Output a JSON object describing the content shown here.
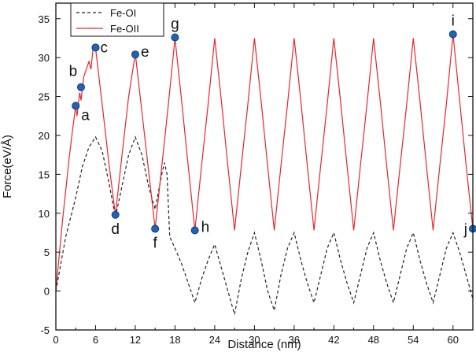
{
  "chart_data": {
    "type": "line",
    "xlabel": "Distance (nm)",
    "ylabel": "Force(eV/Å)",
    "xlim": [
      0,
      63
    ],
    "ylim": [
      -5,
      37
    ],
    "xticks": [
      0,
      3,
      6,
      9,
      12,
      15,
      18,
      21,
      24,
      27,
      30,
      33,
      36,
      39,
      42,
      45,
      48,
      51,
      54,
      57,
      60,
      63
    ],
    "xtick_labels": [
      "0",
      "",
      "6",
      "",
      "12",
      "",
      "18",
      "",
      "24",
      "",
      "30",
      "",
      "36",
      "",
      "42",
      "",
      "48",
      "",
      "54",
      "",
      "60",
      ""
    ],
    "yticks": [
      -5,
      0,
      5,
      10,
      15,
      20,
      25,
      30,
      35
    ],
    "ytick_labels": [
      "-5",
      "0",
      "5",
      "10",
      "15",
      "20",
      "25",
      "30",
      "35"
    ],
    "legend": {
      "position": "top-left",
      "entries": [
        "Fe-OI",
        "Fe-OII"
      ]
    },
    "series": [
      {
        "name": "Fe-OI",
        "style": "dashed",
        "color": "#222222",
        "x": [
          0,
          1.5,
          3,
          4,
          5,
          6,
          7,
          8,
          9,
          10,
          11,
          12,
          13,
          14,
          15,
          16,
          16.4,
          16.8,
          17.2,
          18,
          19,
          20,
          21,
          22,
          23,
          24,
          25,
          26,
          27,
          28,
          29,
          30,
          31,
          32,
          33,
          34,
          35,
          36,
          37,
          38,
          39,
          40,
          41,
          42,
          43,
          44,
          45,
          46,
          47,
          48,
          49,
          50,
          51,
          52,
          53,
          54,
          55,
          56,
          57,
          58,
          59,
          60,
          61,
          62,
          63
        ],
        "y": [
          0,
          7,
          12,
          16,
          18.5,
          19.8,
          18,
          14,
          9.5,
          13.5,
          17.5,
          19.8,
          17.5,
          13.5,
          10.5,
          15,
          16.5,
          15,
          7,
          5.5,
          3.5,
          1,
          -1.5,
          1.5,
          4,
          6,
          3,
          0,
          -3,
          1.5,
          5,
          7.5,
          4,
          0,
          -2.5,
          2,
          5.5,
          7.5,
          4,
          1,
          -1.5,
          2,
          5.5,
          7.5,
          4,
          1,
          -1.5,
          2,
          5.5,
          7.5,
          4,
          1,
          -1.5,
          2,
          5.5,
          7.5,
          4,
          1,
          -1.5,
          2,
          5.5,
          7.5,
          5,
          2,
          -1
        ]
      },
      {
        "name": "Fe-OII",
        "style": "solid",
        "color": "#e8262b",
        "x": [
          0,
          1,
          2,
          2.5,
          3,
          3.2,
          3.6,
          3.8,
          4.2,
          5,
          5.3,
          5.6,
          6,
          7,
          8,
          9,
          10,
          11,
          12,
          13,
          14,
          15,
          16,
          17,
          18,
          19,
          20,
          21,
          22,
          23,
          24,
          25,
          26,
          27,
          28,
          29,
          30,
          31,
          32,
          33,
          34,
          35,
          36,
          37,
          38,
          39,
          40,
          41,
          42,
          43,
          44,
          45,
          46,
          47,
          48,
          49,
          50,
          51,
          52,
          53,
          54,
          55,
          56,
          57,
          58,
          59,
          60,
          61,
          62,
          63
        ],
        "y": [
          0,
          9,
          17,
          20.5,
          23.8,
          22.5,
          25.5,
          24.5,
          27.5,
          29.5,
          28.5,
          31,
          31.2,
          24,
          16.5,
          9.8,
          17.5,
          25,
          30.5,
          23,
          15.5,
          8,
          16,
          24,
          32.5,
          24.5,
          16,
          7.8,
          16,
          24,
          32.5,
          24.5,
          16,
          7.8,
          16,
          24,
          32.5,
          24.5,
          16,
          7.8,
          16,
          24,
          32.5,
          24.5,
          16,
          7.8,
          16,
          24,
          32.5,
          24.5,
          16,
          7.8,
          16,
          24,
          32.5,
          24.5,
          16,
          7.8,
          16,
          24,
          32.5,
          24.5,
          16,
          7.8,
          16,
          24,
          33,
          24.5,
          16,
          8
        ]
      }
    ],
    "markers": {
      "color": "#1f63b5",
      "points": [
        {
          "label": "a",
          "x": 3,
          "y": 23.8,
          "anchor": "right"
        },
        {
          "label": "b",
          "x": 3.8,
          "y": 26.2,
          "anchor": "left-up"
        },
        {
          "label": "c",
          "x": 6,
          "y": 31.3,
          "anchor": "right"
        },
        {
          "label": "d",
          "x": 9,
          "y": 9.8,
          "anchor": "below"
        },
        {
          "label": "e",
          "x": 12,
          "y": 30.4,
          "anchor": "right"
        },
        {
          "label": "f",
          "x": 15,
          "y": 8,
          "anchor": "below"
        },
        {
          "label": "g",
          "x": 18,
          "y": 32.6,
          "anchor": "above"
        },
        {
          "label": "h",
          "x": 21,
          "y": 7.8,
          "anchor": "right"
        },
        {
          "label": "i",
          "x": 60,
          "y": 33,
          "anchor": "above"
        },
        {
          "label": "j",
          "x": 63,
          "y": 8,
          "anchor": "left"
        }
      ]
    }
  }
}
